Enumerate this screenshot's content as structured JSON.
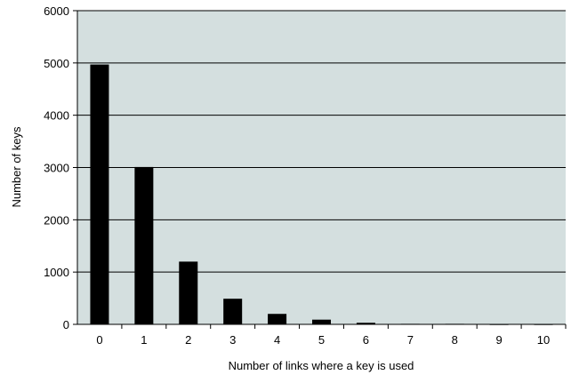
{
  "chart_data": {
    "type": "bar",
    "title": "",
    "xlabel": "Number of links where a key is used",
    "ylabel": "Number of keys",
    "categories": [
      "0",
      "1",
      "2",
      "3",
      "4",
      "5",
      "6",
      "7",
      "8",
      "9",
      "10"
    ],
    "values": [
      4970,
      3010,
      1200,
      490,
      200,
      90,
      30,
      10,
      10,
      5,
      5
    ],
    "ylim": [
      0,
      6000
    ],
    "yticks": [
      "0",
      "1000",
      "2000",
      "3000",
      "4000",
      "5000",
      "6000"
    ],
    "grid": true,
    "legend": "none",
    "colors": {
      "plot_background": "#d4dfdf",
      "bar": "#000000",
      "grid": "#000000"
    }
  }
}
